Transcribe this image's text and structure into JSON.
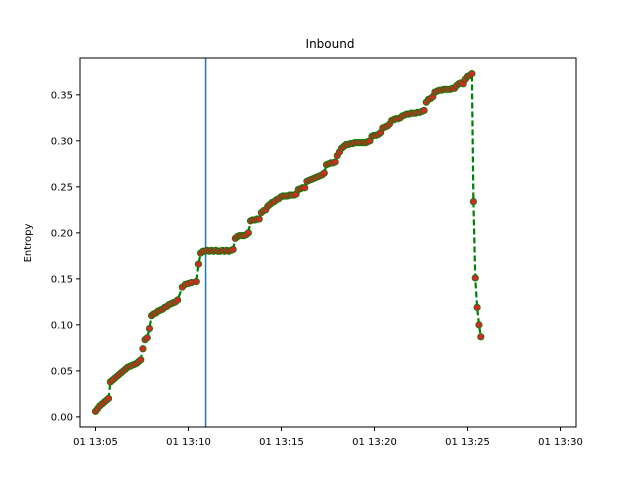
{
  "chart_data": {
    "type": "line",
    "title": "Inbound",
    "xlabel": "",
    "ylabel": "Entropy",
    "xlim": [
      "01 13:04:10",
      "01 13:30:50"
    ],
    "ylim": [
      -0.011,
      0.39
    ],
    "xticks": [
      {
        "value": "01 13:05:00",
        "label": "01 13:05"
      },
      {
        "value": "01 13:10:00",
        "label": "01 13:10"
      },
      {
        "value": "01 13:15:00",
        "label": "01 13:15"
      },
      {
        "value": "01 13:20:00",
        "label": "01 13:20"
      },
      {
        "value": "01 13:25:00",
        "label": "01 13:25"
      },
      {
        "value": "01 13:30:00",
        "label": "01 13:30"
      }
    ],
    "yticks": [
      {
        "value": 0.0,
        "label": "0.00"
      },
      {
        "value": 0.05,
        "label": "0.05"
      },
      {
        "value": 0.1,
        "label": "0.10"
      },
      {
        "value": 0.15,
        "label": "0.15"
      },
      {
        "value": 0.2,
        "label": "0.20"
      },
      {
        "value": 0.25,
        "label": "0.25"
      },
      {
        "value": 0.3,
        "label": "0.30"
      },
      {
        "value": 0.35,
        "label": "0.35"
      }
    ],
    "grid": false,
    "vline": {
      "x": "01 13:10:55",
      "color": "#1f77b4"
    },
    "series": [
      {
        "line_color": "#008000",
        "marker_color": "#d62728",
        "line_style": "dashed",
        "points": [
          [
            "01 13:05:00",
            0.006
          ],
          [
            "01 13:05:07",
            0.009
          ],
          [
            "01 13:05:14",
            0.012
          ],
          [
            "01 13:05:21",
            0.014
          ],
          [
            "01 13:05:28",
            0.016
          ],
          [
            "01 13:05:35",
            0.018
          ],
          [
            "01 13:05:42",
            0.02
          ],
          [
            "01 13:05:48",
            0.038
          ],
          [
            "01 13:05:55",
            0.04
          ],
          [
            "01 13:06:02",
            0.042
          ],
          [
            "01 13:06:09",
            0.044
          ],
          [
            "01 13:06:16",
            0.046
          ],
          [
            "01 13:06:23",
            0.048
          ],
          [
            "01 13:06:30",
            0.05
          ],
          [
            "01 13:06:37",
            0.052
          ],
          [
            "01 13:06:44",
            0.054
          ],
          [
            "01 13:06:51",
            0.055
          ],
          [
            "01 13:06:58",
            0.056
          ],
          [
            "01 13:07:05",
            0.057
          ],
          [
            "01 13:07:12",
            0.058
          ],
          [
            "01 13:07:19",
            0.06
          ],
          [
            "01 13:07:26",
            0.062
          ],
          [
            "01 13:07:33",
            0.074
          ],
          [
            "01 13:07:40",
            0.084
          ],
          [
            "01 13:07:47",
            0.086
          ],
          [
            "01 13:07:54",
            0.096
          ],
          [
            "01 13:08:01",
            0.11
          ],
          [
            "01 13:08:08",
            0.112
          ],
          [
            "01 13:08:15",
            0.113
          ],
          [
            "01 13:08:22",
            0.115
          ],
          [
            "01 13:08:29",
            0.116
          ],
          [
            "01 13:08:36",
            0.117
          ],
          [
            "01 13:08:43",
            0.119
          ],
          [
            "01 13:08:50",
            0.12
          ],
          [
            "01 13:08:57",
            0.122
          ],
          [
            "01 13:09:04",
            0.123
          ],
          [
            "01 13:09:11",
            0.124
          ],
          [
            "01 13:09:18",
            0.125
          ],
          [
            "01 13:09:25",
            0.127
          ],
          [
            "01 13:09:40",
            0.141
          ],
          [
            "01 13:09:50",
            0.144
          ],
          [
            "01 13:10:00",
            0.145
          ],
          [
            "01 13:10:10",
            0.146
          ],
          [
            "01 13:10:25",
            0.147
          ],
          [
            "01 13:10:32",
            0.166
          ],
          [
            "01 13:10:39",
            0.178
          ],
          [
            "01 13:10:46",
            0.18
          ],
          [
            "01 13:10:53",
            0.18
          ],
          [
            "01 13:11:00",
            0.181
          ],
          [
            "01 13:11:07",
            0.18
          ],
          [
            "01 13:11:14",
            0.181
          ],
          [
            "01 13:11:21",
            0.18
          ],
          [
            "01 13:11:28",
            0.181
          ],
          [
            "01 13:11:35",
            0.18
          ],
          [
            "01 13:11:42",
            0.18
          ],
          [
            "01 13:11:49",
            0.181
          ],
          [
            "01 13:11:56",
            0.18
          ],
          [
            "01 13:12:03",
            0.181
          ],
          [
            "01 13:12:10",
            0.18
          ],
          [
            "01 13:12:17",
            0.181
          ],
          [
            "01 13:12:24",
            0.182
          ],
          [
            "01 13:12:31",
            0.194
          ],
          [
            "01 13:12:38",
            0.196
          ],
          [
            "01 13:12:45",
            0.197
          ],
          [
            "01 13:12:52",
            0.197
          ],
          [
            "01 13:12:59",
            0.197
          ],
          [
            "01 13:13:06",
            0.198
          ],
          [
            "01 13:13:13",
            0.2
          ],
          [
            "01 13:13:20",
            0.213
          ],
          [
            "01 13:13:27",
            0.214
          ],
          [
            "01 13:13:34",
            0.214
          ],
          [
            "01 13:13:41",
            0.215
          ],
          [
            "01 13:13:48",
            0.215
          ],
          [
            "01 13:13:55",
            0.222
          ],
          [
            "01 13:14:02",
            0.224
          ],
          [
            "01 13:14:09",
            0.225
          ],
          [
            "01 13:14:16",
            0.229
          ],
          [
            "01 13:14:23",
            0.231
          ],
          [
            "01 13:14:30",
            0.233
          ],
          [
            "01 13:14:37",
            0.234
          ],
          [
            "01 13:14:44",
            0.236
          ],
          [
            "01 13:14:51",
            0.237
          ],
          [
            "01 13:14:58",
            0.239
          ],
          [
            "01 13:15:05",
            0.24
          ],
          [
            "01 13:15:12",
            0.24
          ],
          [
            "01 13:15:19",
            0.24
          ],
          [
            "01 13:15:26",
            0.241
          ],
          [
            "01 13:15:33",
            0.241
          ],
          [
            "01 13:15:40",
            0.241
          ],
          [
            "01 13:15:47",
            0.242
          ],
          [
            "01 13:15:54",
            0.247
          ],
          [
            "01 13:16:01",
            0.248
          ],
          [
            "01 13:16:08",
            0.249
          ],
          [
            "01 13:16:15",
            0.249
          ],
          [
            "01 13:16:22",
            0.256
          ],
          [
            "01 13:16:29",
            0.257
          ],
          [
            "01 13:16:36",
            0.258
          ],
          [
            "01 13:16:43",
            0.259
          ],
          [
            "01 13:16:50",
            0.26
          ],
          [
            "01 13:16:57",
            0.261
          ],
          [
            "01 13:17:04",
            0.262
          ],
          [
            "01 13:17:11",
            0.263
          ],
          [
            "01 13:17:18",
            0.265
          ],
          [
            "01 13:17:25",
            0.274
          ],
          [
            "01 13:17:32",
            0.275
          ],
          [
            "01 13:17:39",
            0.276
          ],
          [
            "01 13:17:46",
            0.276
          ],
          [
            "01 13:17:53",
            0.277
          ],
          [
            "01 13:18:00",
            0.284
          ],
          [
            "01 13:18:07",
            0.288
          ],
          [
            "01 13:18:14",
            0.292
          ],
          [
            "01 13:18:21",
            0.294
          ],
          [
            "01 13:18:28",
            0.296
          ],
          [
            "01 13:18:35",
            0.296
          ],
          [
            "01 13:18:42",
            0.297
          ],
          [
            "01 13:18:49",
            0.297
          ],
          [
            "01 13:18:56",
            0.298
          ],
          [
            "01 13:19:03",
            0.298
          ],
          [
            "01 13:19:10",
            0.298
          ],
          [
            "01 13:19:17",
            0.298
          ],
          [
            "01 13:19:24",
            0.298
          ],
          [
            "01 13:19:31",
            0.298
          ],
          [
            "01 13:19:38",
            0.299
          ],
          [
            "01 13:19:45",
            0.3
          ],
          [
            "01 13:19:52",
            0.305
          ],
          [
            "01 13:19:59",
            0.306
          ],
          [
            "01 13:20:06",
            0.306
          ],
          [
            "01 13:20:13",
            0.307
          ],
          [
            "01 13:20:20",
            0.309
          ],
          [
            "01 13:20:27",
            0.314
          ],
          [
            "01 13:20:34",
            0.315
          ],
          [
            "01 13:20:41",
            0.316
          ],
          [
            "01 13:20:48",
            0.318
          ],
          [
            "01 13:20:55",
            0.322
          ],
          [
            "01 13:21:02",
            0.323
          ],
          [
            "01 13:21:09",
            0.324
          ],
          [
            "01 13:21:16",
            0.324
          ],
          [
            "01 13:21:23",
            0.325
          ],
          [
            "01 13:21:30",
            0.327
          ],
          [
            "01 13:21:37",
            0.328
          ],
          [
            "01 13:21:44",
            0.329
          ],
          [
            "01 13:21:51",
            0.329
          ],
          [
            "01 13:21:58",
            0.33
          ],
          [
            "01 13:22:05",
            0.33
          ],
          [
            "01 13:22:12",
            0.33
          ],
          [
            "01 13:22:19",
            0.331
          ],
          [
            "01 13:22:26",
            0.331
          ],
          [
            "01 13:22:33",
            0.332
          ],
          [
            "01 13:22:40",
            0.333
          ],
          [
            "01 13:22:47",
            0.342
          ],
          [
            "01 13:22:54",
            0.345
          ],
          [
            "01 13:23:01",
            0.346
          ],
          [
            "01 13:23:08",
            0.348
          ],
          [
            "01 13:23:15",
            0.353
          ],
          [
            "01 13:23:22",
            0.354
          ],
          [
            "01 13:23:29",
            0.355
          ],
          [
            "01 13:23:36",
            0.355
          ],
          [
            "01 13:23:43",
            0.356
          ],
          [
            "01 13:23:50",
            0.356
          ],
          [
            "01 13:23:57",
            0.356
          ],
          [
            "01 13:24:04",
            0.356
          ],
          [
            "01 13:24:11",
            0.357
          ],
          [
            "01 13:24:18",
            0.357
          ],
          [
            "01 13:24:25",
            0.36
          ],
          [
            "01 13:24:32",
            0.362
          ],
          [
            "01 13:24:39",
            0.363
          ],
          [
            "01 13:24:46",
            0.362
          ],
          [
            "01 13:24:53",
            0.367
          ],
          [
            "01 13:25:00",
            0.37
          ],
          [
            "01 13:25:07",
            0.371
          ],
          [
            "01 13:25:14",
            0.373
          ],
          [
            "01 13:25:19",
            0.234
          ],
          [
            "01 13:25:25",
            0.151
          ],
          [
            "01 13:25:31",
            0.119
          ],
          [
            "01 13:25:37",
            0.1
          ],
          [
            "01 13:25:43",
            0.087
          ]
        ]
      }
    ]
  }
}
